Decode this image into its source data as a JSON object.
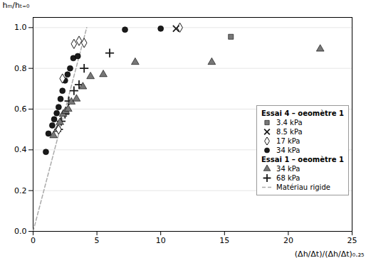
{
  "chart_data": {
    "type": "scatter",
    "x_label": "(Δh/Δt)/(Δh/Δt)₀.₂₅",
    "y_label": "hₘ/hₜ₌₀",
    "xlim": [
      0,
      25
    ],
    "ylim": [
      0.0,
      1.05
    ],
    "xticks": [
      0,
      5,
      10,
      15,
      20,
      25
    ],
    "yticks": [
      {
        "value": 0.0,
        "label": "0.0"
      },
      0.2,
      0.4,
      0.6,
      0.8,
      {
        "value": 1.0,
        "label": "1.0"
      }
    ],
    "grid": true,
    "legend": "right",
    "series": [
      {
        "name": "3.4 kPa",
        "group": "Essai 4 – oeomètre 1",
        "marker": "square",
        "color": "#777777",
        "x": [
          15.5
        ],
        "values": [
          0.955
        ]
      },
      {
        "name": "8.5 kPa",
        "group": "Essai 4 – oeomètre 1",
        "marker": "x",
        "color": "#1a1a1a",
        "x": [
          11.2
        ],
        "values": [
          0.995
        ]
      },
      {
        "name": "17 kPa",
        "group": "Essai 4 – oeomètre 1",
        "marker": "diamond",
        "color": "#1a1a1a",
        "x": [
          2.0,
          2.3,
          3.2,
          3.6,
          4.0,
          11.5
        ],
        "values": [
          0.5,
          0.75,
          0.92,
          0.935,
          0.925,
          1.0
        ]
      },
      {
        "name": "34 kPa",
        "group": "Essai 4 – oeomètre 1",
        "marker": "circle",
        "color": "#1a1a1a",
        "x": [
          1.0,
          1.2,
          1.5,
          1.65,
          1.85,
          2.0,
          2.15,
          2.3,
          2.5,
          2.7,
          2.9,
          3.15,
          3.5,
          7.2,
          10.0
        ],
        "values": [
          0.39,
          0.48,
          0.52,
          0.55,
          0.58,
          0.61,
          0.65,
          0.69,
          0.74,
          0.77,
          0.8,
          0.85,
          0.86,
          0.99,
          0.995
        ]
      },
      {
        "name": "34 kPa",
        "group": "Essai 1 – oeomètre 1",
        "marker": "triangle",
        "color": "#777777",
        "x": [
          1.6,
          1.9,
          2.1,
          2.35,
          2.55,
          2.75,
          3.0,
          3.4,
          3.9,
          4.5,
          5.5,
          8.0,
          14.0,
          22.5
        ],
        "values": [
          0.47,
          0.5,
          0.535,
          0.575,
          0.59,
          0.6,
          0.635,
          0.65,
          0.71,
          0.76,
          0.77,
          0.83,
          0.83,
          0.895
        ]
      },
      {
        "name": "68 kPa",
        "group": "Essai 1 – oeomètre 1",
        "marker": "plus",
        "color": "#1a1a1a",
        "x": [
          2.0,
          2.2,
          2.5,
          2.8,
          3.2,
          3.6,
          4.0,
          6.0
        ],
        "values": [
          0.5,
          0.54,
          0.575,
          0.64,
          0.69,
          0.72,
          0.8,
          0.875
        ]
      },
      {
        "name": "Matériau rigide",
        "type": "line",
        "line_style": "dashed",
        "color": "#aaaaaa",
        "x": [
          0.0,
          4.2
        ],
        "values": [
          0.0,
          1.0
        ]
      }
    ]
  }
}
